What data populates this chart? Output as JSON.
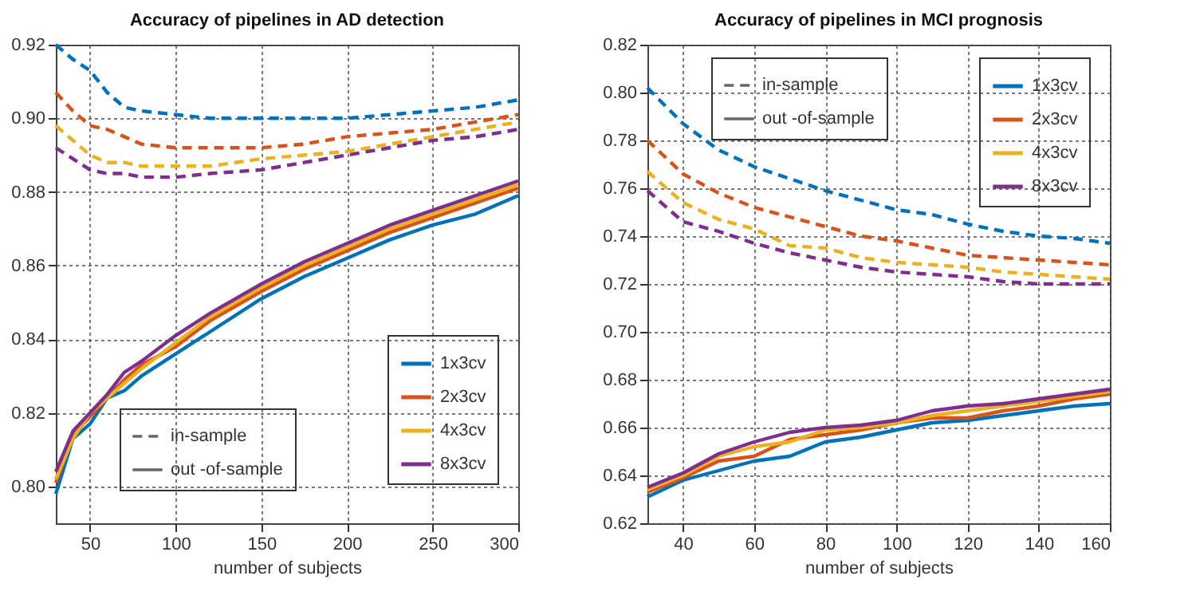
{
  "chart_data": [
    {
      "type": "line",
      "title": "Accuracy of pipelines in AD detection",
      "xlabel": "number of subjects",
      "annotations": [
        "in-sample",
        "out -of-sample"
      ],
      "grid": true,
      "legend": "bottom right",
      "marker": "none",
      "x": [
        30,
        40,
        50,
        60,
        70,
        80,
        100,
        120,
        150,
        175,
        200,
        225,
        250,
        275,
        300
      ],
      "xlim": [
        30,
        300
      ],
      "xticks": [
        50,
        100,
        150,
        200,
        250,
        300
      ],
      "ylim": [
        0.79,
        0.92
      ],
      "yticks": [
        {
          "value": 0.8,
          "label": "0.80"
        },
        {
          "value": 0.82,
          "label": "0.82"
        },
        {
          "value": 0.84,
          "label": "0.84"
        },
        {
          "value": 0.86,
          "label": "0.86"
        },
        {
          "value": 0.88,
          "label": "0.88"
        },
        {
          "value": 0.9,
          "label": "0.90"
        },
        {
          "value": 0.92,
          "label": "0.92"
        }
      ],
      "series": [
        {
          "color": "#0072bd",
          "line_style": "dashed",
          "values": [
            0.92,
            0.916,
            0.913,
            0.907,
            0.903,
            0.902,
            0.901,
            0.9,
            0.9,
            0.9,
            0.9,
            0.901,
            0.902,
            0.903,
            0.905
          ]
        },
        {
          "color": "#d95319",
          "line_style": "dashed",
          "values": [
            0.907,
            0.902,
            0.898,
            0.897,
            0.895,
            0.893,
            0.892,
            0.892,
            0.892,
            0.893,
            0.895,
            0.896,
            0.897,
            0.899,
            0.901
          ]
        },
        {
          "color": "#edb120",
          "line_style": "dashed",
          "values": [
            0.898,
            0.894,
            0.89,
            0.888,
            0.888,
            0.887,
            0.887,
            0.887,
            0.889,
            0.89,
            0.891,
            0.893,
            0.895,
            0.897,
            0.899
          ]
        },
        {
          "color": "#7e2f8e",
          "line_style": "dashed",
          "values": [
            0.892,
            0.889,
            0.886,
            0.885,
            0.885,
            0.884,
            0.884,
            0.885,
            0.886,
            0.888,
            0.89,
            0.892,
            0.894,
            0.895,
            0.897
          ]
        },
        {
          "name": "1x3cv",
          "color": "#0072bd",
          "line_style": "solid",
          "values": [
            0.798,
            0.813,
            0.817,
            0.824,
            0.826,
            0.83,
            0.836,
            0.842,
            0.851,
            0.857,
            0.862,
            0.867,
            0.871,
            0.874,
            0.879
          ]
        },
        {
          "name": "2x3cv",
          "color": "#d95319",
          "line_style": "solid",
          "values": [
            0.801,
            0.814,
            0.819,
            0.824,
            0.829,
            0.833,
            0.838,
            0.845,
            0.853,
            0.859,
            0.864,
            0.869,
            0.873,
            0.877,
            0.881
          ]
        },
        {
          "name": "4x3cv",
          "color": "#edb120",
          "line_style": "solid",
          "values": [
            0.802,
            0.813,
            0.82,
            0.824,
            0.828,
            0.832,
            0.839,
            0.846,
            0.854,
            0.86,
            0.865,
            0.87,
            0.874,
            0.878,
            0.882
          ]
        },
        {
          "name": "8x3cv",
          "color": "#7e2f8e",
          "line_style": "solid",
          "values": [
            0.804,
            0.815,
            0.82,
            0.825,
            0.831,
            0.834,
            0.841,
            0.847,
            0.855,
            0.861,
            0.866,
            0.871,
            0.875,
            0.879,
            0.883
          ]
        }
      ]
    },
    {
      "type": "line",
      "title": "Accuracy of pipelines in MCI prognosis",
      "xlabel": "number of subjects",
      "annotations": [
        "in-sample",
        "out -of-sample"
      ],
      "grid": true,
      "legend": "top right",
      "marker": "none",
      "x": [
        30,
        40,
        50,
        60,
        70,
        80,
        90,
        100,
        110,
        120,
        130,
        140,
        150,
        160
      ],
      "xlim": [
        30,
        160
      ],
      "xticks": [
        40,
        60,
        80,
        100,
        120,
        140,
        160
      ],
      "ylim": [
        0.62,
        0.82
      ],
      "yticks": [
        {
          "value": 0.62,
          "label": "0.62"
        },
        {
          "value": 0.64,
          "label": "0.64"
        },
        {
          "value": 0.66,
          "label": "0.66"
        },
        {
          "value": 0.68,
          "label": "0.68"
        },
        {
          "value": 0.7,
          "label": "0.70"
        },
        {
          "value": 0.72,
          "label": "0.72"
        },
        {
          "value": 0.74,
          "label": "0.74"
        },
        {
          "value": 0.76,
          "label": "0.76"
        },
        {
          "value": 0.78,
          "label": "0.78"
        },
        {
          "value": 0.8,
          "label": "0.80"
        },
        {
          "value": 0.82,
          "label": "0.82"
        }
      ],
      "series": [
        {
          "color": "#0072bd",
          "line_style": "dashed",
          "values": [
            0.802,
            0.787,
            0.776,
            0.769,
            0.764,
            0.759,
            0.755,
            0.751,
            0.749,
            0.745,
            0.742,
            0.74,
            0.739,
            0.737
          ]
        },
        {
          "color": "#d95319",
          "line_style": "dashed",
          "values": [
            0.78,
            0.766,
            0.758,
            0.752,
            0.748,
            0.744,
            0.74,
            0.738,
            0.735,
            0.732,
            0.731,
            0.73,
            0.729,
            0.728
          ]
        },
        {
          "color": "#edb120",
          "line_style": "dashed",
          "values": [
            0.767,
            0.754,
            0.747,
            0.743,
            0.736,
            0.735,
            0.731,
            0.729,
            0.728,
            0.727,
            0.725,
            0.724,
            0.723,
            0.722
          ]
        },
        {
          "color": "#7e2f8e",
          "line_style": "dashed",
          "values": [
            0.759,
            0.746,
            0.742,
            0.737,
            0.733,
            0.73,
            0.727,
            0.725,
            0.724,
            0.723,
            0.721,
            0.72,
            0.72,
            0.72
          ]
        },
        {
          "name": "1x3cv",
          "color": "#0072bd",
          "line_style": "solid",
          "values": [
            0.631,
            0.638,
            0.642,
            0.646,
            0.648,
            0.654,
            0.656,
            0.659,
            0.662,
            0.663,
            0.665,
            0.667,
            0.669,
            0.67
          ]
        },
        {
          "name": "2x3cv",
          "color": "#d95319",
          "line_style": "solid",
          "values": [
            0.633,
            0.639,
            0.646,
            0.648,
            0.655,
            0.657,
            0.659,
            0.662,
            0.664,
            0.664,
            0.667,
            0.669,
            0.672,
            0.674
          ]
        },
        {
          "name": "4x3cv",
          "color": "#edb120",
          "line_style": "solid",
          "values": [
            0.634,
            0.64,
            0.648,
            0.652,
            0.654,
            0.659,
            0.66,
            0.662,
            0.665,
            0.667,
            0.669,
            0.671,
            0.673,
            0.675
          ]
        },
        {
          "name": "8x3cv",
          "color": "#7e2f8e",
          "line_style": "solid",
          "values": [
            0.635,
            0.641,
            0.649,
            0.654,
            0.658,
            0.66,
            0.661,
            0.663,
            0.667,
            0.669,
            0.67,
            0.672,
            0.674,
            0.676
          ]
        }
      ]
    }
  ]
}
